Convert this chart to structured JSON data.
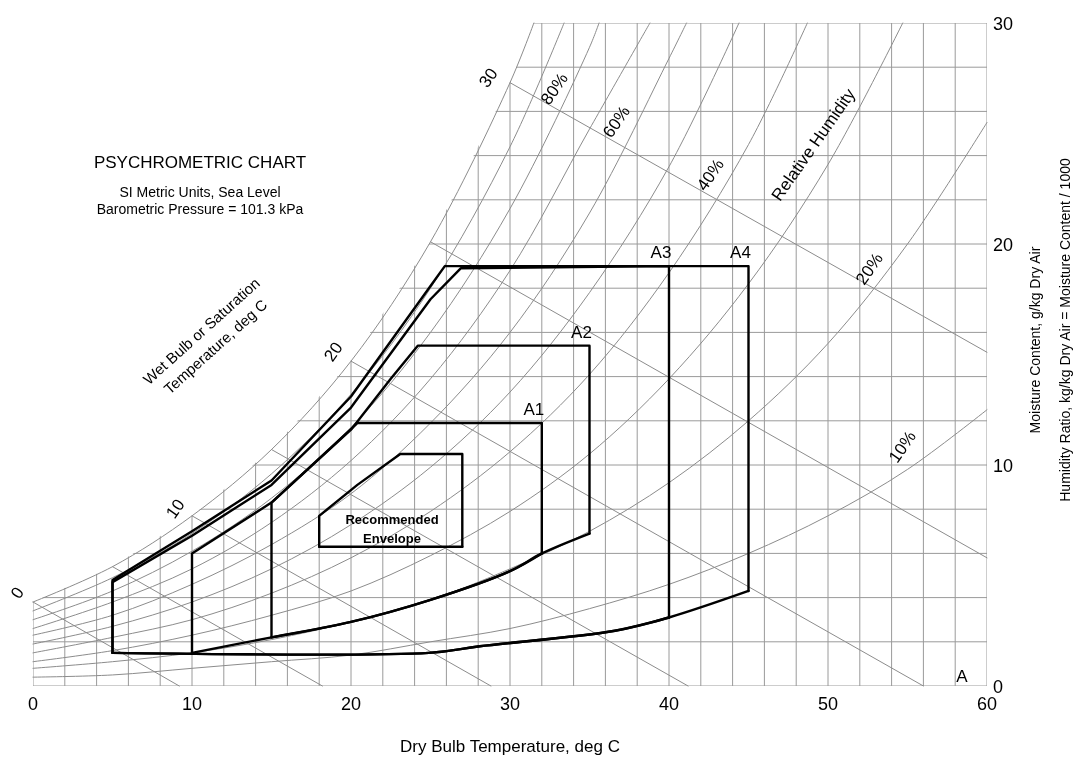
{
  "chart_data": {
    "type": "line",
    "title": "PSYCHROMETRIC CHART",
    "subtitle": "SI Metric Units, Sea Level\nBarometric Pressure = 101.3 kPa",
    "xlabel": "Dry Bulb Temperature, deg C",
    "ylabel": "Moisture Content, g/kg Dry Air",
    "xlim": [
      0,
      60
    ],
    "ylim": [
      0,
      30
    ],
    "grid": true,
    "xticks": [
      0,
      {
        "value": 2,
        "label": null
      },
      {
        "value": 4,
        "label": null
      },
      {
        "value": 6,
        "label": null
      },
      {
        "value": 8,
        "label": null
      },
      10,
      {
        "value": 12,
        "label": null
      },
      {
        "value": 14,
        "label": null
      },
      {
        "value": 16,
        "label": null
      },
      {
        "value": 18,
        "label": null
      },
      20,
      {
        "value": 22,
        "label": null
      },
      {
        "value": 24,
        "label": null
      },
      {
        "value": 26,
        "label": null
      },
      {
        "value": 28,
        "label": null
      },
      30,
      {
        "value": 32,
        "label": null
      },
      {
        "value": 34,
        "label": null
      },
      {
        "value": 36,
        "label": null
      },
      {
        "value": 38,
        "label": null
      },
      40,
      {
        "value": 42,
        "label": null
      },
      {
        "value": 44,
        "label": null
      },
      {
        "value": 46,
        "label": null
      },
      {
        "value": 48,
        "label": null
      },
      50,
      {
        "value": 52,
        "label": null
      },
      {
        "value": 54,
        "label": null
      },
      {
        "value": 56,
        "label": null
      },
      {
        "value": 58,
        "label": null
      },
      60
    ],
    "yticks": [
      0,
      {
        "value": 2,
        "label": null
      },
      {
        "value": 4,
        "label": null
      },
      {
        "value": 6,
        "label": null
      },
      {
        "value": 8,
        "label": null
      },
      10,
      {
        "value": 12,
        "label": null
      },
      {
        "value": 14,
        "label": null
      },
      {
        "value": 16,
        "label": null
      },
      {
        "value": 18,
        "label": null
      },
      20,
      {
        "value": 22,
        "label": null
      },
      {
        "value": 24,
        "label": null
      },
      {
        "value": 26,
        "label": null
      },
      {
        "value": 28,
        "label": null
      },
      30
    ],
    "series": [
      {
        "color": "#8c8c8c",
        "x": [
          0,
          5,
          10,
          15,
          20,
          25,
          30,
          31.5
        ],
        "values": [
          3.8,
          5.4,
          7.7,
          10.7,
          14.7,
          20.1,
          27.3,
          30
        ]
      },
      {
        "color": "#8c8c8c",
        "x": [
          0,
          5,
          10,
          15,
          20,
          25,
          30,
          33.4
        ],
        "values": [
          3.4,
          4.9,
          6.9,
          9.6,
          13.2,
          18.0,
          24.4,
          30
        ]
      },
      {
        "color": "#8c8c8c",
        "x": [
          0,
          5,
          10,
          15,
          20,
          25,
          30,
          35,
          35.6
        ],
        "values": [
          3.0,
          4.3,
          6.1,
          8.5,
          11.7,
          16.0,
          21.6,
          28.9,
          30
        ]
      },
      {
        "color": "#8c8c8c",
        "x": [
          0,
          5,
          10,
          15,
          20,
          25,
          30,
          35,
          38.8
        ],
        "values": [
          2.6,
          3.8,
          5.3,
          7.4,
          10.2,
          13.9,
          18.8,
          25.2,
          30
        ]
      },
      {
        "color": "#8c8c8c",
        "x": [
          0,
          5,
          10,
          15,
          20,
          25,
          30,
          35,
          40,
          41.1
        ],
        "values": [
          2.3,
          3.2,
          4.6,
          6.4,
          8.7,
          11.9,
          16.0,
          21.4,
          28.4,
          30
        ]
      },
      {
        "color": "#8c8c8c",
        "x": [
          0,
          5,
          10,
          15,
          20,
          25,
          30,
          35,
          40,
          44.4
        ],
        "values": [
          1.9,
          2.7,
          3.8,
          5.3,
          7.3,
          9.9,
          13.3,
          17.8,
          23.5,
          30
        ]
      },
      {
        "color": "#8c8c8c",
        "x": [
          0,
          5,
          10,
          15,
          20,
          25,
          30,
          35,
          40,
          45,
          48.7
        ],
        "values": [
          1.5,
          2.2,
          3.0,
          4.2,
          5.8,
          7.9,
          10.6,
          14.1,
          18.7,
          24.5,
          30
        ]
      },
      {
        "color": "#8c8c8c",
        "x": [
          0,
          5,
          10,
          15,
          20,
          25,
          30,
          35,
          40,
          45,
          50,
          54.7
        ],
        "values": [
          1.1,
          1.6,
          2.3,
          3.2,
          4.3,
          5.9,
          7.9,
          10.5,
          13.9,
          18.2,
          23.6,
          30
        ]
      },
      {
        "color": "#8c8c8c",
        "x": [
          0,
          5,
          10,
          15,
          20,
          25,
          30,
          35,
          40,
          45,
          50,
          55,
          60
        ],
        "values": [
          0.8,
          1.1,
          1.5,
          2.1,
          2.9,
          3.9,
          5.3,
          7.0,
          9.2,
          12.0,
          15.5,
          20.0,
          25.5
        ]
      },
      {
        "color": "#8c8c8c",
        "x": [
          0,
          5,
          10,
          15,
          20,
          25,
          30,
          35,
          40,
          45,
          50,
          55,
          60
        ],
        "values": [
          0.4,
          0.5,
          0.8,
          1.1,
          1.4,
          2.0,
          2.6,
          3.5,
          4.6,
          6.0,
          7.7,
          9.8,
          12.5
        ]
      },
      {
        "color": "#8c8c8c",
        "x": [
          0,
          9.2
        ],
        "values": [
          3.8,
          0
        ]
      },
      {
        "color": "#8c8c8c",
        "x": [
          5,
          18.2
        ],
        "values": [
          5.4,
          0
        ]
      },
      {
        "color": "#8c8c8c",
        "x": [
          10,
          28.8
        ],
        "values": [
          7.7,
          0
        ]
      },
      {
        "color": "#8c8c8c",
        "x": [
          15,
          41.2
        ],
        "values": [
          10.7,
          0
        ]
      },
      {
        "color": "#8c8c8c",
        "x": [
          20,
          56
        ],
        "values": [
          14.7,
          0
        ]
      },
      {
        "color": "#8c8c8c",
        "x": [
          25,
          60
        ],
        "values": [
          20.1,
          5.8
        ]
      },
      {
        "color": "#8c8c8c",
        "x": [
          30,
          60
        ],
        "values": [
          27.3,
          15.1
        ]
      },
      {
        "name": "A1",
        "color": "#000000",
        "x": [
          15,
          15,
          20.4,
          32,
          32
        ],
        "values": [
          2.2,
          8.3,
          11.9,
          11.9,
          6.0
        ]
      },
      {
        "color": "#000000",
        "x": [
          15,
          20,
          25,
          30,
          32
        ],
        "values": [
          2.2,
          2.9,
          3.9,
          5.2,
          6.0
        ]
      },
      {
        "name": "A2",
        "color": "#000000",
        "x": [
          10,
          10,
          15,
          20,
          22.5,
          24.2,
          35,
          35
        ],
        "values": [
          1.5,
          6.0,
          8.3,
          11.6,
          13.9,
          15.4,
          15.4,
          6.9
        ]
      },
      {
        "color": "#000000",
        "x": [
          10,
          15,
          20,
          25,
          30,
          32,
          35
        ],
        "values": [
          1.5,
          2.2,
          2.9,
          3.9,
          5.2,
          6.0,
          6.9
        ]
      },
      {
        "name": "A3",
        "color": "#000000",
        "x": [
          5,
          5,
          10,
          15,
          20,
          25,
          26.9,
          40,
          40
        ],
        "values": [
          1.5,
          4.7,
          6.8,
          9.1,
          12.6,
          17.5,
          18.9,
          19,
          3.1
        ]
      },
      {
        "color": "#000000",
        "x": [
          5,
          24.9,
          28.1,
          36.6,
          40
        ],
        "values": [
          1.5,
          1.5,
          1.8,
          2.5,
          3.1
        ]
      },
      {
        "name": "A4",
        "color": "#000000",
        "x": [
          5,
          5,
          10,
          15,
          20,
          25,
          25.9,
          45,
          45
        ],
        "values": [
          1.5,
          4.8,
          7.0,
          9.3,
          13.1,
          18.1,
          19,
          19,
          4.3
        ]
      },
      {
        "color": "#000000",
        "x": [
          5,
          24.9,
          28.1,
          36.6,
          40,
          45
        ],
        "values": [
          1.5,
          1.5,
          1.8,
          2.5,
          3.1,
          4.3
        ]
      },
      {
        "color": "#000000",
        "x": [
          18,
          18,
          20.4,
          23.1,
          27,
          27
        ],
        "values": [
          6.3,
          7.7,
          9.1,
          10.5,
          10.5,
          6.3
        ]
      },
      {
        "color": "#000000",
        "x": [
          18,
          27
        ],
        "values": [
          6.3,
          6.3
        ]
      }
    ],
    "annotations": [
      "Wet Bulb or Saturation\nTemperature, deg C",
      "Humidity Ratio, kg/kg Dry Air = Moisture Content / 1000",
      "Recommended\nEnvelope",
      "80%",
      "60%",
      "40%",
      "20%",
      "10%",
      "Relative Humidity",
      "0",
      "10",
      "20",
      "30",
      "A"
    ]
  }
}
